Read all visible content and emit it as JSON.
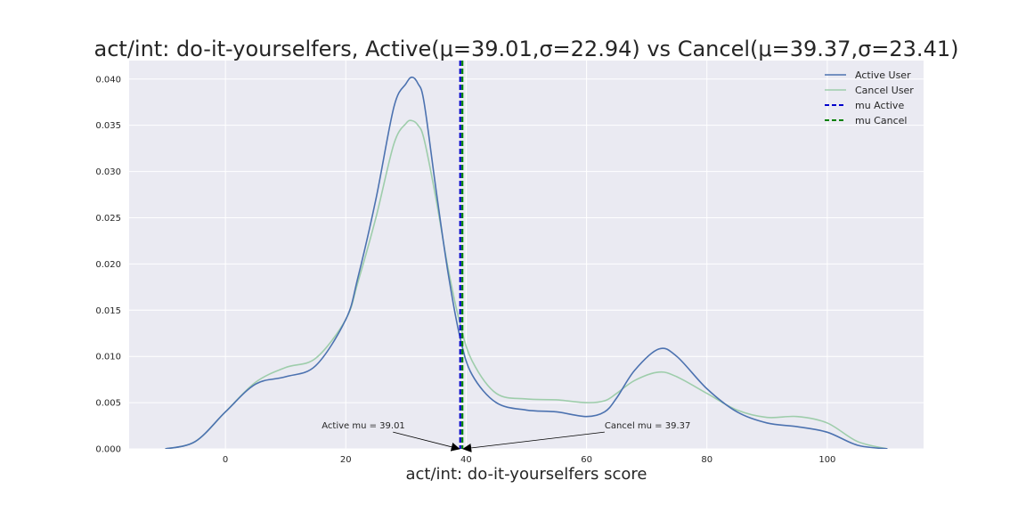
{
  "chart_data": {
    "type": "line",
    "title": "act/int: do-it-yourselfers, Active(μ=39.01,σ=22.94) vs Cancel(μ=39.37,σ=23.41)",
    "xlabel": "act/int: do-it-yourselfers score",
    "ylabel": "",
    "xlim": [
      -16,
      116
    ],
    "ylim": [
      0,
      0.042
    ],
    "xticks": [
      0,
      20,
      40,
      60,
      80,
      100
    ],
    "yticks": [
      0.0,
      0.005,
      0.01,
      0.015,
      0.02,
      0.025,
      0.03,
      0.035,
      0.04
    ],
    "ytick_labels": [
      "0.000",
      "0.005",
      "0.010",
      "0.015",
      "0.020",
      "0.025",
      "0.030",
      "0.035",
      "0.040"
    ],
    "grid": true,
    "legend": "top-right",
    "series": [
      {
        "name": "Active User",
        "color": "#4c72b0",
        "x": [
          -10,
          -5,
          0,
          5,
          10,
          15,
          20,
          22,
          25,
          28,
          30,
          31,
          32,
          33,
          35,
          37,
          39,
          41,
          45,
          50,
          55,
          60,
          63,
          65,
          68,
          72,
          75,
          80,
          85,
          90,
          95,
          100,
          105,
          110
        ],
        "y": [
          0.0,
          0.0008,
          0.004,
          0.007,
          0.0078,
          0.009,
          0.014,
          0.0185,
          0.027,
          0.037,
          0.0395,
          0.0402,
          0.0395,
          0.0375,
          0.028,
          0.019,
          0.012,
          0.008,
          0.005,
          0.0042,
          0.004,
          0.0035,
          0.004,
          0.0055,
          0.0085,
          0.0108,
          0.01,
          0.0065,
          0.004,
          0.0028,
          0.0024,
          0.0018,
          0.0004,
          0.0
        ]
      },
      {
        "name": "Cancel User",
        "color": "#9ecdab",
        "x": [
          -10,
          -5,
          0,
          5,
          10,
          15,
          20,
          22,
          25,
          28,
          30,
          31,
          32,
          33,
          35,
          37,
          39,
          41,
          45,
          50,
          55,
          60,
          63,
          65,
          68,
          72,
          75,
          80,
          85,
          90,
          95,
          100,
          105,
          110
        ],
        "y": [
          0.0,
          0.0008,
          0.004,
          0.0072,
          0.0088,
          0.0098,
          0.014,
          0.018,
          0.025,
          0.033,
          0.0352,
          0.0355,
          0.035,
          0.0335,
          0.027,
          0.0195,
          0.0135,
          0.0095,
          0.006,
          0.0054,
          0.0053,
          0.005,
          0.0052,
          0.006,
          0.0074,
          0.0083,
          0.0078,
          0.006,
          0.0042,
          0.0034,
          0.0035,
          0.0028,
          0.0008,
          0.0
        ]
      }
    ],
    "vlines": [
      {
        "name": "mu Active",
        "x": 39.01,
        "color": "#0000cc",
        "style": "dashed"
      },
      {
        "name": "mu Cancel",
        "x": 39.37,
        "color": "#008000",
        "style": "dashed"
      }
    ],
    "annotations": [
      {
        "text": "Active mu = 39.01",
        "x": 39.01,
        "y": 0,
        "text_x": 16,
        "text_y": 0.0022
      },
      {
        "text": "Cancel mu = 39.37",
        "x": 39.37,
        "y": 0,
        "text_x": 63,
        "text_y": 0.0022
      }
    ]
  }
}
